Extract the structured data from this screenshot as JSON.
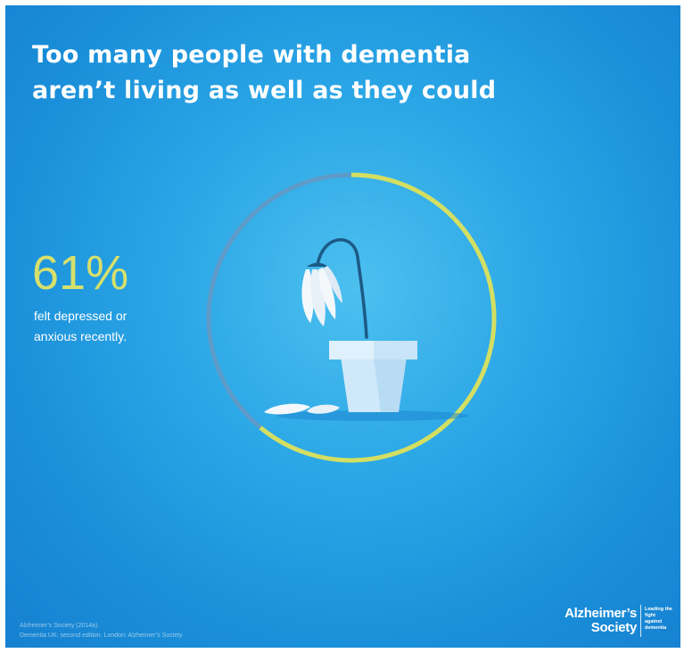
{
  "title": {
    "line1": "Too many people with dementia",
    "line2": "aren’t living as well as they could"
  },
  "stat": {
    "value": "61%",
    "caption_line1": "felt depressed or",
    "caption_line2": "anxious recently."
  },
  "chart_data": {
    "type": "pie",
    "style": "ring",
    "categories": [
      "felt depressed or anxious recently",
      "other"
    ],
    "values": [
      61,
      39
    ],
    "colors": [
      "#d4df62",
      "#5e9bc8"
    ]
  },
  "source": {
    "line1": "Alzheimer’s Society (2014a).",
    "line2": "Dementia UK: second edition. London: Alzheimer’s Society"
  },
  "logo": {
    "name_line1": "Alzheimer’s",
    "name_line2": "Society",
    "tagline_line1": "Leading the",
    "tagline_line2": "fight against",
    "tagline_line3": "dementia"
  },
  "colors": {
    "background": "#2aa6e6",
    "accent": "#d4df62",
    "ring_track": "#5e9bc8",
    "pot": "#cfe9fa",
    "stem": "#1d5a86",
    "petal": "#f4f8fb"
  },
  "illustration": "wilted-flower-in-pot"
}
